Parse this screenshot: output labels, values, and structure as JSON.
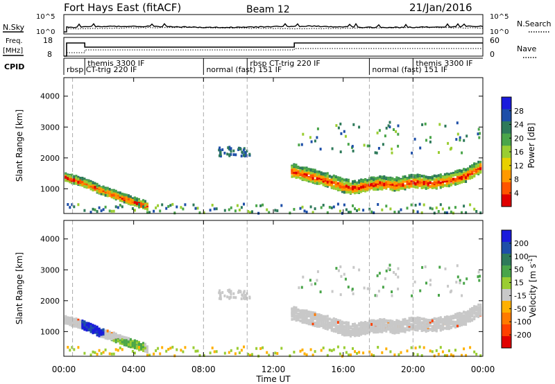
{
  "header": {
    "station": "Fort Hays East (fitACF)",
    "beam": "Beam 12",
    "date": "21/Jan/2016"
  },
  "labels": {
    "nsky": "N.Sky",
    "nsearch": "N.Search",
    "freq": "Freq.",
    "mhz": "[MHz]",
    "nave": "Nave",
    "cpid": "CPID",
    "slant_range": "Slant Range [km]",
    "power": "Power [dB]",
    "velocity": "Velocity [m s",
    "velocity_exp": "-1",
    "velocity_close": "]",
    "time": "Time UT"
  },
  "noise_ticks": {
    "left": [
      "10^5",
      "10^0"
    ],
    "right": [
      "10^5",
      "10^0"
    ]
  },
  "freq_ticks": {
    "left": [
      "18",
      "8"
    ],
    "right": [
      "60",
      "0"
    ]
  },
  "cpid_modes": [
    {
      "label": "themis 3300 IF",
      "start_h": 1.2,
      "row": "top"
    },
    {
      "label": "rbsp CT-trig 220 IF",
      "start_h": 0.0,
      "row": "bottom"
    },
    {
      "label": "normal (fast) 151 IF",
      "start_h": 8.0,
      "row": "bottom"
    },
    {
      "label": "rbsp CT-trig 220 IF",
      "start_h": 10.5,
      "row": "top"
    },
    {
      "label": "normal (fast) 151 IF",
      "start_h": 17.5,
      "row": "bottom"
    },
    {
      "label": "themis 3300 IF",
      "start_h": 20.0,
      "row": "top"
    }
  ],
  "chart_data": [
    {
      "type": "heatmap",
      "name": "power",
      "xlabel": "Time UT",
      "ylabel": "Slant Range [km]",
      "xlim": [
        0,
        24
      ],
      "ylim": [
        200,
        4600
      ],
      "x_ticks": [
        "00:00",
        "04:00",
        "08:00",
        "12:00",
        "16:00",
        "20:00",
        "00:00"
      ],
      "y_ticks": [
        1000,
        2000,
        3000,
        4000
      ],
      "colorbar_label": "Power [dB]",
      "colorbar_ticks": [
        4,
        8,
        12,
        16,
        20,
        24,
        28
      ],
      "colorbar_colors": [
        "#1a1adc",
        "#1e4fa8",
        "#2e7a5a",
        "#4aa54a",
        "#9acd32",
        "#e8d000",
        "#ff9900",
        "#ff5500",
        "#e00000"
      ],
      "dashed_lines_h": [
        0.5,
        8.0,
        10.5,
        17.5,
        20.0
      ],
      "ridge": [
        [
          0,
          1400
        ],
        [
          1,
          1250
        ],
        [
          2,
          1000
        ],
        [
          3,
          800
        ],
        [
          4,
          600
        ],
        [
          4.8,
          450
        ],
        [
          13,
          1600
        ],
        [
          14,
          1450
        ],
        [
          15,
          1300
        ],
        [
          16,
          1100
        ],
        [
          16.5,
          1050
        ],
        [
          18,
          1200
        ],
        [
          19,
          1150
        ],
        [
          20,
          1250
        ],
        [
          21,
          1200
        ],
        [
          22,
          1300
        ],
        [
          23,
          1450
        ],
        [
          24,
          1800
        ]
      ]
    },
    {
      "type": "heatmap",
      "name": "velocity",
      "xlabel": "Time UT",
      "ylabel": "Slant Range [km]",
      "xlim": [
        0,
        24
      ],
      "ylim": [
        200,
        4600
      ],
      "x_ticks": [
        "00:00",
        "04:00",
        "08:00",
        "12:00",
        "16:00",
        "20:00",
        "00:00"
      ],
      "y_ticks": [
        1000,
        2000,
        3000,
        4000
      ],
      "colorbar_label": "Velocity [m s-1]",
      "colorbar_ticks": [
        200,
        100,
        50,
        15,
        -15,
        -50,
        -100,
        -200
      ],
      "colorbar_colors": [
        "#1a1adc",
        "#1e4fa8",
        "#2e7a5a",
        "#4aa54a",
        "#9acd32",
        "#c8c8c8",
        "#ffb000",
        "#ff7a00",
        "#ff4000",
        "#e00000"
      ],
      "dashed_lines_h": [
        0.5,
        8.0,
        10.5,
        17.5,
        20.0
      ]
    }
  ]
}
